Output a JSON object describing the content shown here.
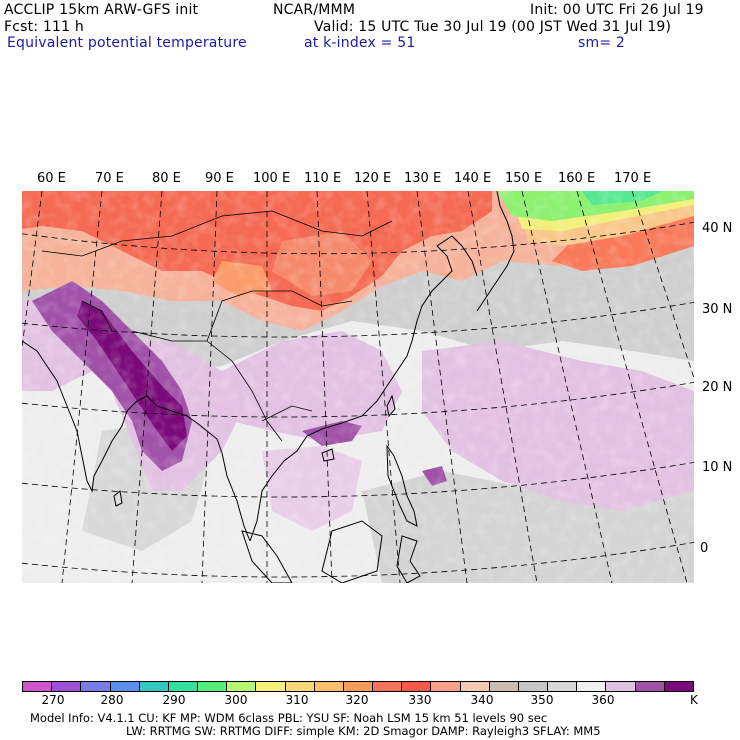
{
  "header": {
    "model_line": "ACCLIP 15km ARW-GFS init",
    "org": "NCAR/MMM",
    "init": "Init: 00 UTC Fri 26 Jul 19",
    "fcst": "Fcst:  111 h",
    "valid": "Valid: 15 UTC Tue 30 Jul 19 (00 JST Wed 31 Jul 19)",
    "field": "Equivalent potential temperature",
    "level": "at k-index =  51",
    "smooth": "sm= 2"
  },
  "map": {
    "longitude_labels": [
      "60 E",
      "70 E",
      "80 E",
      "90 E",
      "100 E",
      "110 E",
      "120 E",
      "130 E",
      "140 E",
      "150 E",
      "160 E",
      "170 E"
    ],
    "latitude_labels": [
      "40 N",
      "30 N",
      "20 N",
      "10 N",
      "0"
    ]
  },
  "colorbar": {
    "colors": [
      "#cc55cc",
      "#a050d8",
      "#7b7be8",
      "#5a8ff0",
      "#33c8c0",
      "#33e0a0",
      "#55ef77",
      "#b8f870",
      "#f5f07a",
      "#f8d878",
      "#fbbf6e",
      "#fb9c5a",
      "#f8745a",
      "#f85a46",
      "#f8a088",
      "#f3c9b0",
      "#cbbcb0",
      "#c6c6c6",
      "#d8d8d8",
      "#f0f0f0",
      "#e2c2e2",
      "#a052a8",
      "#7a0a7a"
    ],
    "tick_labels": [
      "270",
      "280",
      "290",
      "300",
      "310",
      "320",
      "330",
      "340",
      "350",
      "360"
    ],
    "unit": "K"
  },
  "model_info": {
    "line1": "Model Info: V4.1.1     CU: KF        MP: WDM 6class   PBL: YSU        SF: Noah LSM     15 km    51 levels    90 sec",
    "line2": "LW: RRTMG     SW: RRTMG   DIFF: simple KM: 2D Smagor DAMP: Rayleigh3   SFLAY: MM5"
  }
}
